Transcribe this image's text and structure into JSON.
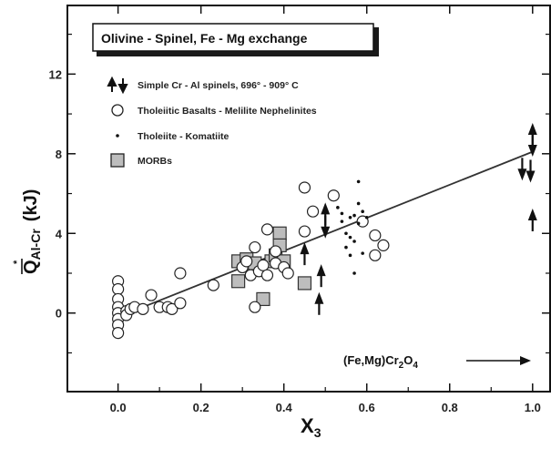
{
  "chart_data": {
    "type": "scatter",
    "title": "Olivine - Spinel, Fe - Mg exchange",
    "xlabel_main": "X",
    "xlabel_sub": "3",
    "ylabel_main": "Q",
    "ylabel_sub": "Al-Cr",
    "ylabel_unit": "(kJ)",
    "xlim": [
      -0.12,
      1.04
    ],
    "ylim": [
      -3.9,
      15.4
    ],
    "x_ticks": [
      0.0,
      0.2,
      0.4,
      0.6,
      0.8,
      1.0
    ],
    "x_tick_labels": [
      "0.0",
      "0.2",
      "0.4",
      "0.6",
      "0.8",
      "1.0"
    ],
    "y_ticks": [
      0,
      4,
      8,
      12
    ],
    "y_tick_labels": [
      "0",
      "4",
      "8",
      "12"
    ],
    "grid": false,
    "legend_position": "top-left",
    "annotation": {
      "text_main": "(Fe,Mg)Cr",
      "text_sub1": "2",
      "text_mid": "O",
      "text_sub2": "4",
      "y": -2.25
    },
    "fit_line": {
      "x": [
        0.0,
        1.0
      ],
      "y": [
        -0.2,
        8.1
      ]
    },
    "series": [
      {
        "name": "Simple Cr - Al spinels, 696° - 909° C",
        "marker": "arrow",
        "up": [
          {
            "x": 0.45,
            "y": 3.0
          },
          {
            "x": 0.49,
            "y": 1.9
          },
          {
            "x": 0.485,
            "y": 0.5
          },
          {
            "x": 0.5,
            "y": 5.0
          },
          {
            "x": 1.0,
            "y": 9.0
          },
          {
            "x": 1.0,
            "y": 4.7
          }
        ],
        "down": [
          {
            "x": 0.5,
            "y": 4.3
          },
          {
            "x": 0.975,
            "y": 7.2
          },
          {
            "x": 0.995,
            "y": 7.1
          },
          {
            "x": 1.0,
            "y": 8.4
          }
        ]
      },
      {
        "name": "Tholeiitic Basalts - Melilite Nephelinites",
        "marker": "circle",
        "points": [
          {
            "x": 0.0,
            "y": 1.6
          },
          {
            "x": 0.0,
            "y": 1.2
          },
          {
            "x": 0.0,
            "y": 0.7
          },
          {
            "x": 0.0,
            "y": 0.3
          },
          {
            "x": 0.0,
            "y": 0.0
          },
          {
            "x": 0.0,
            "y": -0.3
          },
          {
            "x": 0.0,
            "y": -0.6
          },
          {
            "x": 0.0,
            "y": -1.0
          },
          {
            "x": 0.02,
            "y": 0.1
          },
          {
            "x": 0.02,
            "y": -0.1
          },
          {
            "x": 0.03,
            "y": 0.2
          },
          {
            "x": 0.04,
            "y": 0.3
          },
          {
            "x": 0.06,
            "y": 0.2
          },
          {
            "x": 0.08,
            "y": 0.9
          },
          {
            "x": 0.1,
            "y": 0.3
          },
          {
            "x": 0.12,
            "y": 0.3
          },
          {
            "x": 0.13,
            "y": 0.2
          },
          {
            "x": 0.15,
            "y": 0.5
          },
          {
            "x": 0.15,
            "y": 2.0
          },
          {
            "x": 0.23,
            "y": 1.4
          },
          {
            "x": 0.3,
            "y": 2.3
          },
          {
            "x": 0.31,
            "y": 2.6
          },
          {
            "x": 0.32,
            "y": 1.9
          },
          {
            "x": 0.33,
            "y": 0.3
          },
          {
            "x": 0.33,
            "y": 3.3
          },
          {
            "x": 0.34,
            "y": 2.1
          },
          {
            "x": 0.35,
            "y": 2.4
          },
          {
            "x": 0.36,
            "y": 4.2
          },
          {
            "x": 0.36,
            "y": 1.9
          },
          {
            "x": 0.38,
            "y": 2.5
          },
          {
            "x": 0.38,
            "y": 3.1
          },
          {
            "x": 0.4,
            "y": 2.3
          },
          {
            "x": 0.41,
            "y": 2.0
          },
          {
            "x": 0.45,
            "y": 4.1
          },
          {
            "x": 0.45,
            "y": 6.3
          },
          {
            "x": 0.47,
            "y": 5.1
          },
          {
            "x": 0.52,
            "y": 5.9
          },
          {
            "x": 0.59,
            "y": 4.6
          },
          {
            "x": 0.62,
            "y": 3.9
          },
          {
            "x": 0.62,
            "y": 2.9
          },
          {
            "x": 0.64,
            "y": 3.4
          }
        ]
      },
      {
        "name": "Tholeiite - Komatiite",
        "marker": "dot",
        "points": [
          {
            "x": 0.54,
            "y": 5.0
          },
          {
            "x": 0.54,
            "y": 4.6
          },
          {
            "x": 0.55,
            "y": 4.0
          },
          {
            "x": 0.55,
            "y": 3.3
          },
          {
            "x": 0.56,
            "y": 4.8
          },
          {
            "x": 0.56,
            "y": 3.8
          },
          {
            "x": 0.56,
            "y": 2.9
          },
          {
            "x": 0.57,
            "y": 2.0
          },
          {
            "x": 0.57,
            "y": 4.9
          },
          {
            "x": 0.58,
            "y": 6.6
          },
          {
            "x": 0.58,
            "y": 5.5
          },
          {
            "x": 0.58,
            "y": 4.5
          },
          {
            "x": 0.59,
            "y": 5.1
          },
          {
            "x": 0.6,
            "y": 4.8
          },
          {
            "x": 0.53,
            "y": 5.3
          },
          {
            "x": 0.57,
            "y": 3.6
          },
          {
            "x": 0.59,
            "y": 3.0
          }
        ]
      },
      {
        "name": "MORBs",
        "marker": "square",
        "points": [
          {
            "x": 0.29,
            "y": 2.6
          },
          {
            "x": 0.29,
            "y": 1.6
          },
          {
            "x": 0.31,
            "y": 2.7
          },
          {
            "x": 0.33,
            "y": 2.5
          },
          {
            "x": 0.35,
            "y": 0.7
          },
          {
            "x": 0.37,
            "y": 2.6
          },
          {
            "x": 0.38,
            "y": 2.9
          },
          {
            "x": 0.39,
            "y": 4.0
          },
          {
            "x": 0.39,
            "y": 3.4
          },
          {
            "x": 0.4,
            "y": 2.6
          },
          {
            "x": 0.45,
            "y": 1.5
          }
        ]
      }
    ]
  }
}
